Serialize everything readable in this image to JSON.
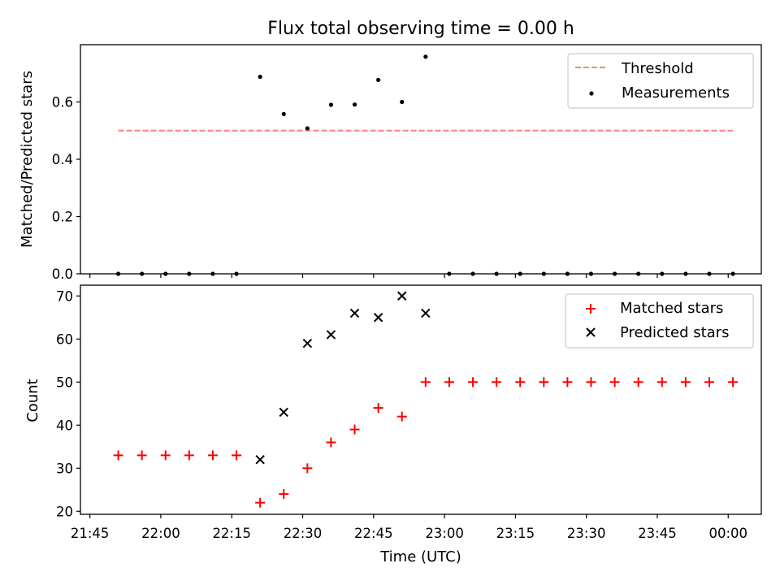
{
  "chart_data": [
    {
      "type": "scatter",
      "title": "Flux total observing time = 0.00 h",
      "xlabel": "",
      "ylabel": "Matched/Predicted stars",
      "xlim": [
        "21:43",
        "00:07"
      ],
      "ylim": [
        0,
        0.8
      ],
      "yticks": [
        0.0,
        0.2,
        0.4,
        0.6
      ],
      "ytick_labels": [
        "0.0",
        "0.2",
        "0.4",
        "0.6"
      ],
      "xticks": [
        "21:45",
        "22:00",
        "22:15",
        "22:30",
        "22:45",
        "23:00",
        "23:15",
        "23:30",
        "23:45",
        "00:00"
      ],
      "grid": false,
      "legend_position": "top-right",
      "threshold": {
        "name": "Threshold",
        "color": "#ff8080",
        "value": 0.5,
        "x_start": "21:51",
        "x_end": "00:01"
      },
      "series": [
        {
          "name": "Measurements",
          "marker": "dot",
          "color": "#000000",
          "x": [
            "21:51",
            "21:56",
            "22:01",
            "22:06",
            "22:11",
            "22:16",
            "22:21",
            "22:26",
            "22:31",
            "22:36",
            "22:41",
            "22:46",
            "22:51",
            "22:56",
            "23:01",
            "23:06",
            "23:11",
            "23:16",
            "23:21",
            "23:26",
            "23:31",
            "23:36",
            "23:41",
            "23:46",
            "23:51",
            "23:56",
            "00:01"
          ],
          "y": [
            0,
            0,
            0,
            0,
            0,
            0,
            0.688,
            0.558,
            0.508,
            0.59,
            0.591,
            0.677,
            0.6,
            0.758,
            0,
            0,
            0,
            0,
            0,
            0,
            0,
            0,
            0,
            0,
            0,
            0,
            0
          ]
        }
      ]
    },
    {
      "type": "scatter",
      "title": "",
      "xlabel": "Time (UTC)",
      "ylabel": "Count",
      "xlim": [
        "21:43",
        "00:07"
      ],
      "ylim": [
        19.3,
        72.5
      ],
      "yticks": [
        20,
        30,
        40,
        50,
        60,
        70
      ],
      "xticks": [
        "21:45",
        "22:00",
        "22:15",
        "22:30",
        "22:45",
        "23:00",
        "23:15",
        "23:30",
        "23:45",
        "00:00"
      ],
      "grid": false,
      "legend_position": "top-right",
      "series": [
        {
          "name": "Matched stars",
          "marker": "plus",
          "color": "#ff0000",
          "x": [
            "21:51",
            "21:56",
            "22:01",
            "22:06",
            "22:11",
            "22:16",
            "22:21",
            "22:26",
            "22:31",
            "22:36",
            "22:41",
            "22:46",
            "22:51",
            "22:56",
            "23:01",
            "23:06",
            "23:11",
            "23:16",
            "23:21",
            "23:26",
            "23:31",
            "23:36",
            "23:41",
            "23:46",
            "23:51",
            "23:56",
            "00:01"
          ],
          "y": [
            33,
            33,
            33,
            33,
            33,
            33,
            22,
            24,
            30,
            36,
            39,
            44,
            42,
            50,
            50,
            50,
            50,
            50,
            50,
            50,
            50,
            50,
            50,
            50,
            50,
            50,
            50
          ]
        },
        {
          "name": "Predicted stars",
          "marker": "x",
          "color": "#000000",
          "x": [
            "22:21",
            "22:26",
            "22:31",
            "22:36",
            "22:41",
            "22:46",
            "22:51",
            "22:56"
          ],
          "y": [
            32,
            43,
            59,
            61,
            66,
            65,
            70,
            66
          ]
        }
      ]
    }
  ]
}
